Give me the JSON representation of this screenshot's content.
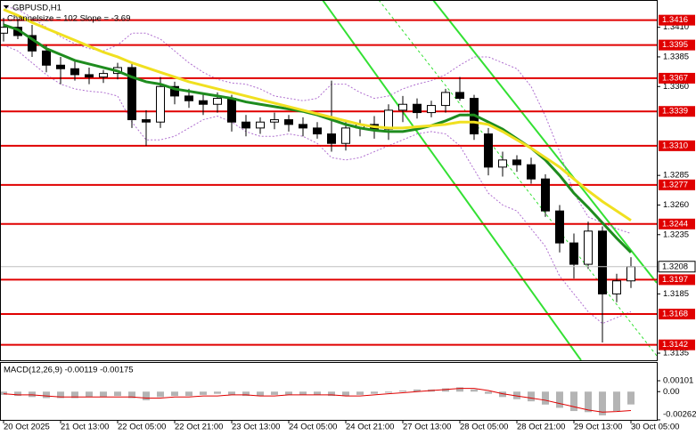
{
  "chart_data": [
    {
      "type": "candlestick",
      "title": "GBPUSD,H1",
      "subtitle": "Channelsize = 102  Slope = -3.69",
      "categories": [
        "20 Oct 2025",
        null,
        null,
        null,
        "21 Oct 13:00",
        null,
        null,
        null,
        "22 Oct 05:00",
        null,
        null,
        null,
        "22 Oct 21:00",
        null,
        null,
        null,
        "23 Oct 13:00",
        null,
        null,
        null,
        "24 Oct 05:00",
        null,
        null,
        null,
        "24 Oct 21:00",
        null,
        null,
        null,
        "27 Oct 13:00",
        null,
        null,
        null,
        "28 Oct 05:00",
        null,
        null,
        null,
        "28 Oct 21:00",
        null,
        null,
        null,
        "29 Oct 13:00",
        null,
        null,
        null,
        "30 Oct 05:00"
      ],
      "open": [
        1.3405,
        1.341,
        1.3403,
        1.339,
        1.3378,
        1.3375,
        1.337,
        1.3368,
        1.3371,
        1.3376,
        1.3332,
        1.333,
        1.336,
        1.3352,
        1.3348,
        1.3345,
        1.335,
        1.333,
        1.3325,
        1.333,
        1.3332,
        1.3328,
        1.3325,
        1.332,
        1.3312,
        1.3325,
        1.3328,
        1.3324,
        1.334,
        1.3345,
        1.3338,
        1.3344,
        1.3355,
        1.335,
        1.332,
        1.3292,
        1.3298,
        1.3294,
        1.3282,
        1.3255,
        1.3228,
        1.321,
        1.3238,
        1.3185,
        1.3196
      ],
      "high": [
        1.3418,
        1.3416,
        1.3412,
        1.3395,
        1.3385,
        1.3382,
        1.3376,
        1.3374,
        1.338,
        1.338,
        1.334,
        1.3368,
        1.3364,
        1.3358,
        1.3354,
        1.3355,
        1.3353,
        1.3336,
        1.3334,
        1.3338,
        1.3336,
        1.3334,
        1.333,
        1.3365,
        1.333,
        1.3332,
        1.3335,
        1.3345,
        1.3352,
        1.335,
        1.3348,
        1.3358,
        1.3368,
        1.3353,
        1.3325,
        1.3305,
        1.3302,
        1.33,
        1.3286,
        1.326,
        1.3236,
        1.3246,
        1.3242,
        1.3202,
        1.3216
      ],
      "low": [
        1.3398,
        1.34,
        1.3385,
        1.3372,
        1.3362,
        1.3365,
        1.3362,
        1.3363,
        1.3366,
        1.3325,
        1.331,
        1.3325,
        1.3345,
        1.3342,
        1.3336,
        1.3338,
        1.3322,
        1.3318,
        1.332,
        1.3324,
        1.3322,
        1.3318,
        1.3316,
        1.3305,
        1.3306,
        1.3318,
        1.3316,
        1.3315,
        1.333,
        1.3333,
        1.3334,
        1.3338,
        1.3348,
        1.3315,
        1.3285,
        1.3284,
        1.3288,
        1.3278,
        1.325,
        1.322,
        1.3198,
        1.3206,
        1.3144,
        1.3178,
        1.319
      ],
      "close": [
        1.341,
        1.3403,
        1.339,
        1.3378,
        1.3375,
        1.337,
        1.3368,
        1.3371,
        1.3376,
        1.3332,
        1.333,
        1.336,
        1.3352,
        1.3348,
        1.3345,
        1.335,
        1.333,
        1.3325,
        1.333,
        1.3332,
        1.3328,
        1.3325,
        1.332,
        1.3312,
        1.3325,
        1.3328,
        1.3324,
        1.334,
        1.3345,
        1.3338,
        1.3344,
        1.3355,
        1.335,
        1.332,
        1.3292,
        1.3298,
        1.3294,
        1.3282,
        1.3255,
        1.3228,
        1.321,
        1.3238,
        1.3185,
        1.3196,
        1.3208
      ],
      "up_color": "#ffffff",
      "down_color": "#000000",
      "lines": [
        {
          "color": "#1e8c1e",
          "values": [
            1.3412,
            1.3408,
            1.34,
            1.3392,
            1.3387,
            1.3382,
            1.3379,
            1.3376,
            1.3373,
            1.3368,
            1.3364,
            1.3362,
            1.3358,
            1.3356,
            1.3354,
            1.3352,
            1.335,
            1.3347,
            1.3345,
            1.3343,
            1.3341,
            1.3339,
            1.3336,
            1.3332,
            1.3328,
            1.3325,
            1.3323,
            1.3322,
            1.3322,
            1.3324,
            1.3327,
            1.3331,
            1.3336,
            1.3336,
            1.333,
            1.3324,
            1.3316,
            1.3308,
            1.3298,
            1.3285,
            1.327,
            1.3258,
            1.3245,
            1.3232,
            1.322
          ]
        },
        {
          "color": "#f0e020",
          "values": [
            1.3425,
            1.342,
            1.3414,
            1.3409,
            1.3404,
            1.3399,
            1.3394,
            1.3389,
            1.3385,
            1.338,
            1.3376,
            1.3372,
            1.3368,
            1.3364,
            1.3361,
            1.3358,
            1.3355,
            1.3352,
            1.3349,
            1.3346,
            1.3343,
            1.334,
            1.3337,
            1.3334,
            1.3331,
            1.3328,
            1.3326,
            1.3325,
            1.3325,
            1.3326,
            1.3327,
            1.3328,
            1.333,
            1.333,
            1.3328,
            1.3322,
            1.3315,
            1.3308,
            1.33,
            1.3292,
            1.3282,
            1.3272,
            1.3263,
            1.3255,
            1.3247
          ]
        }
      ],
      "bands": {
        "color": "#b070d0",
        "upper": [
          1.3428,
          1.3425,
          1.3418,
          1.341,
          1.3402,
          1.3396,
          1.3392,
          1.339,
          1.3395,
          1.3405,
          1.3405,
          1.34,
          1.339,
          1.338,
          1.3372,
          1.3366,
          1.3363,
          1.3362,
          1.3358,
          1.3352,
          1.335,
          1.3348,
          1.335,
          1.3362,
          1.3362,
          1.3355,
          1.335,
          1.3352,
          1.3358,
          1.3362,
          1.3365,
          1.337,
          1.3378,
          1.3385,
          1.3385,
          1.338,
          1.3375,
          1.336,
          1.3335,
          1.3305,
          1.327,
          1.325,
          1.3245,
          1.324,
          1.3236
        ],
        "lower": [
          1.3395,
          1.339,
          1.338,
          1.337,
          1.3362,
          1.3358,
          1.3356,
          1.3355,
          1.3352,
          1.333,
          1.3315,
          1.3315,
          1.3318,
          1.3325,
          1.3332,
          1.3335,
          1.333,
          1.3322,
          1.3318,
          1.3318,
          1.332,
          1.3318,
          1.3312,
          1.33,
          1.3298,
          1.33,
          1.3305,
          1.331,
          1.3315,
          1.332,
          1.3322,
          1.332,
          1.331,
          1.329,
          1.327,
          1.326,
          1.3255,
          1.324,
          1.3225,
          1.32,
          1.3185,
          1.317,
          1.316,
          1.3165,
          1.317
        ]
      },
      "levels": [
        1.3416,
        1.3395,
        1.3367,
        1.3339,
        {
          "value": 1.331,
          "label": "1.3310"
        },
        1.3277,
        1.3244,
        1.3197,
        1.3168,
        1.3142
      ],
      "level_color": "#e00000",
      "current_price": 1.3208,
      "ylim": [
        1.3129,
        1.3433
      ],
      "yticks": [
        {
          "value": 1.341,
          "label": "1.3410"
        },
        1.3385,
        {
          "value": 1.336,
          "label": "1.3360"
        },
        1.3285,
        {
          "value": 1.326,
          "label": "1.3260"
        },
        1.3235,
        1.3185,
        1.3135
      ]
    },
    {
      "type": "bar",
      "title": "MACD(12,26,9) -0.00119 -0.00175",
      "color": "#b4b4b4",
      "values": [
        -0.0003,
        -0.0004,
        -0.0005,
        -0.0006,
        -0.0006,
        -0.0006,
        -0.0005,
        -0.0005,
        -0.0004,
        -0.0006,
        -0.0008,
        -0.0005,
        -0.0004,
        -0.0004,
        -0.0003,
        -0.0002,
        -0.0003,
        -0.0004,
        -0.0004,
        -0.0003,
        -0.0003,
        -0.0003,
        -0.0003,
        -0.0004,
        -0.0004,
        -0.0003,
        -0.0002,
        -0.0001,
        0.0001,
        0.0002,
        0.0002,
        0.0003,
        0.0004,
        0.0002,
        -0.0002,
        -0.0005,
        -0.0007,
        -0.0009,
        -0.0012,
        -0.0015,
        -0.0018,
        -0.0019,
        -0.0022,
        -0.0018,
        -0.00119
      ],
      "signal": {
        "color": "#e00000",
        "values": [
          -0.0002,
          -0.0003,
          -0.0003,
          -0.0004,
          -0.0005,
          -0.0005,
          -0.0005,
          -0.0005,
          -0.0005,
          -0.0005,
          -0.0006,
          -0.0006,
          -0.0005,
          -0.0005,
          -0.0004,
          -0.0004,
          -0.0003,
          -0.0003,
          -0.0004,
          -0.0004,
          -0.0003,
          -0.0003,
          -0.0003,
          -0.0003,
          -0.0004,
          -0.0004,
          -0.0003,
          -0.0002,
          -0.0001,
          0,
          0.0001,
          0.0002,
          0.0003,
          0.0003,
          0.0001,
          -0.0002,
          -0.0004,
          -0.0006,
          -0.0008,
          -0.0011,
          -0.0014,
          -0.0017,
          -0.0019,
          -0.00185,
          -0.00175
        ]
      },
      "ylim": [
        -0.00262,
        0.00101
      ],
      "yticks": [
        0.00101,
        {
          "value": 0,
          "label": "0.00"
        },
        -0.00262
      ]
    }
  ]
}
